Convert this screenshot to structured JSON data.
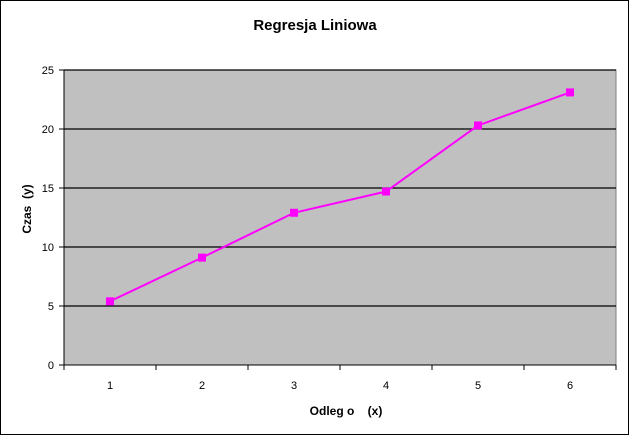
{
  "chart_data": {
    "type": "line",
    "title": "Regresja Liniowa",
    "xlabel": "Odleg o    (x)",
    "ylabel": "Czas  (y)",
    "categories": [
      "1",
      "2",
      "3",
      "4",
      "5",
      "6"
    ],
    "series": [
      {
        "values": [
          5.4,
          9.1,
          12.9,
          14.7,
          20.3,
          23.1
        ]
      }
    ],
    "ylim": [
      0,
      25
    ],
    "yticks": [
      0,
      5,
      10,
      15,
      20,
      25
    ],
    "grid": true,
    "legend": "none",
    "colors": {
      "plot_background": "#c0c0c0",
      "series_line": "#ff00ff",
      "gridline": "#000000"
    }
  }
}
